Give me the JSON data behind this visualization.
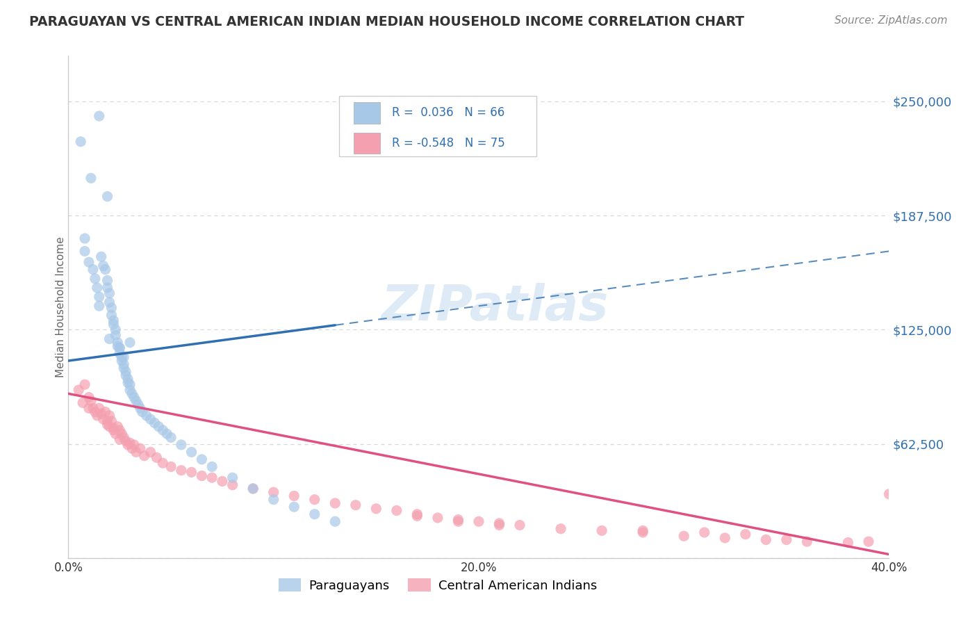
{
  "title": "PARAGUAYAN VS CENTRAL AMERICAN INDIAN MEDIAN HOUSEHOLD INCOME CORRELATION CHART",
  "source": "Source: ZipAtlas.com",
  "ylabel": "Median Household Income",
  "xlim": [
    0.0,
    0.4
  ],
  "ylim": [
    0,
    275000
  ],
  "yticks": [
    0,
    62500,
    125000,
    187500,
    250000
  ],
  "ytick_labels": [
    "",
    "$62,500",
    "$125,000",
    "$187,500",
    "$250,000"
  ],
  "xticks": [
    0.0,
    0.1,
    0.2,
    0.3,
    0.4
  ],
  "xtick_labels": [
    "0.0%",
    "",
    "20.0%",
    "",
    "40.0%"
  ],
  "blue_color": "#a8c8e8",
  "pink_color": "#f4a0b0",
  "blue_line_color": "#3070b0",
  "pink_line_color": "#e05080",
  "watermark": "ZIPatlas",
  "watermark_color": "#c8dff0",
  "blue_r": 0.036,
  "blue_n": 66,
  "pink_r": -0.548,
  "pink_n": 75,
  "blue_line_intercept": 108000,
  "blue_line_slope": 150000,
  "pink_line_intercept": 90000,
  "pink_line_slope": -220000,
  "blue_scatter_x": [
    0.006,
    0.015,
    0.011,
    0.019,
    0.008,
    0.008,
    0.01,
    0.012,
    0.013,
    0.014,
    0.015,
    0.015,
    0.016,
    0.017,
    0.018,
    0.019,
    0.019,
    0.02,
    0.02,
    0.021,
    0.021,
    0.022,
    0.022,
    0.023,
    0.023,
    0.024,
    0.024,
    0.025,
    0.025,
    0.026,
    0.026,
    0.027,
    0.027,
    0.028,
    0.028,
    0.029,
    0.029,
    0.03,
    0.03,
    0.031,
    0.032,
    0.033,
    0.034,
    0.035,
    0.036,
    0.038,
    0.04,
    0.042,
    0.044,
    0.046,
    0.048,
    0.05,
    0.055,
    0.06,
    0.065,
    0.07,
    0.08,
    0.09,
    0.1,
    0.11,
    0.12,
    0.13,
    0.02,
    0.025,
    0.027,
    0.03
  ],
  "blue_scatter_y": [
    228000,
    242000,
    208000,
    198000,
    175000,
    168000,
    162000,
    158000,
    153000,
    148000,
    143000,
    138000,
    165000,
    160000,
    158000,
    152000,
    148000,
    145000,
    140000,
    137000,
    133000,
    130000,
    128000,
    125000,
    122000,
    118000,
    116000,
    115000,
    112000,
    108000,
    110000,
    106000,
    104000,
    102000,
    100000,
    98000,
    96000,
    95000,
    92000,
    90000,
    88000,
    86000,
    84000,
    82000,
    80000,
    78000,
    76000,
    74000,
    72000,
    70000,
    68000,
    66000,
    62000,
    58000,
    54000,
    50000,
    44000,
    38000,
    32000,
    28000,
    24000,
    20000,
    120000,
    115000,
    110000,
    118000
  ],
  "pink_scatter_x": [
    0.005,
    0.007,
    0.008,
    0.01,
    0.01,
    0.011,
    0.012,
    0.013,
    0.014,
    0.015,
    0.016,
    0.017,
    0.018,
    0.019,
    0.019,
    0.02,
    0.02,
    0.021,
    0.022,
    0.022,
    0.023,
    0.024,
    0.025,
    0.025,
    0.026,
    0.027,
    0.028,
    0.029,
    0.03,
    0.031,
    0.032,
    0.033,
    0.035,
    0.037,
    0.04,
    0.043,
    0.046,
    0.05,
    0.055,
    0.06,
    0.065,
    0.07,
    0.075,
    0.08,
    0.09,
    0.1,
    0.11,
    0.12,
    0.13,
    0.14,
    0.15,
    0.16,
    0.17,
    0.18,
    0.19,
    0.2,
    0.21,
    0.22,
    0.24,
    0.26,
    0.28,
    0.3,
    0.32,
    0.34,
    0.36,
    0.38,
    0.4,
    0.17,
    0.19,
    0.21,
    0.28,
    0.31,
    0.33,
    0.35,
    0.39
  ],
  "pink_scatter_y": [
    92000,
    85000,
    95000,
    88000,
    82000,
    86000,
    82000,
    80000,
    78000,
    82000,
    79000,
    76000,
    80000,
    75000,
    73000,
    78000,
    72000,
    75000,
    71000,
    70000,
    68000,
    72000,
    70000,
    65000,
    68000,
    66000,
    64000,
    62000,
    63000,
    60000,
    62000,
    58000,
    60000,
    56000,
    58000,
    55000,
    52000,
    50000,
    48000,
    47000,
    45000,
    44000,
    42000,
    40000,
    38000,
    36000,
    34000,
    32000,
    30000,
    29000,
    27000,
    26000,
    24000,
    22000,
    21000,
    20000,
    19000,
    18000,
    16000,
    15000,
    14000,
    12000,
    11000,
    10000,
    9000,
    8500,
    35000,
    23000,
    20000,
    18000,
    15000,
    14000,
    13000,
    10000,
    9000
  ]
}
